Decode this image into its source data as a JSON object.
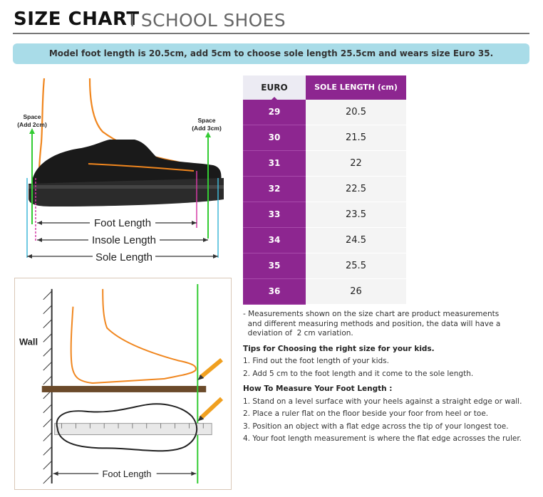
{
  "header": {
    "title": "SIZE CHART",
    "subtitle": "I SCHOOL SHOES"
  },
  "banner": {
    "text": "Model foot length is 20.5cm, add 5cm to choose sole length 25.5cm and wears size Euro 35."
  },
  "table": {
    "headers": {
      "euro": "EURO",
      "sole": "SOLE LENGTH (cm)"
    },
    "rows": [
      {
        "euro": "29",
        "sole": "20.5"
      },
      {
        "euro": "30",
        "sole": "21.5"
      },
      {
        "euro": "31",
        "sole": "22"
      },
      {
        "euro": "32",
        "sole": "22.5"
      },
      {
        "euro": "33",
        "sole": "23.5"
      },
      {
        "euro": "34",
        "sole": "24.5"
      },
      {
        "euro": "35",
        "sole": "25.5"
      },
      {
        "euro": "36",
        "sole": "26"
      }
    ]
  },
  "notes": {
    "measurement_lines": [
      "- Measurements shown on the size chart are product measurements",
      "  and different measuring methods and position, the data will have a",
      "  deviation of  2 cm variation."
    ],
    "tips_heading": "Tips for Choosing the right size for your kids.",
    "tips": [
      "1. Find out the foot length of your kids.",
      "2. Add 5 cm to the foot length and it come to the sole length."
    ],
    "measure_heading": "How To Measure Your Foot Length :",
    "measure_steps": [
      "1. Stand on a level surface with your heels against a straight edge or wall.",
      "2. Place a ruler flat on the floor beside your foor from heel or toe.",
      "3. Position an object with a flat edge across the tip of your longest toe.",
      "4. Your foot length measurement is where the flat edge acrosses the ruler."
    ]
  },
  "diagram_top": {
    "space_left": [
      "Space",
      "(Add 2cm)"
    ],
    "space_right": [
      "Space",
      "(Add 3cm)"
    ],
    "foot_length": "Foot Length",
    "insole_length": "Insole Length",
    "sole_length": "Sole Length"
  },
  "diagram_bottom": {
    "wall_label": "Wall",
    "foot_length": "Foot Length"
  },
  "colors": {
    "purple": "#8d2690",
    "banner": "#a9dce8",
    "orange": "#f0861e",
    "green": "#33cc33",
    "pink": "#d63ba5",
    "cyan": "#40b8d8"
  }
}
